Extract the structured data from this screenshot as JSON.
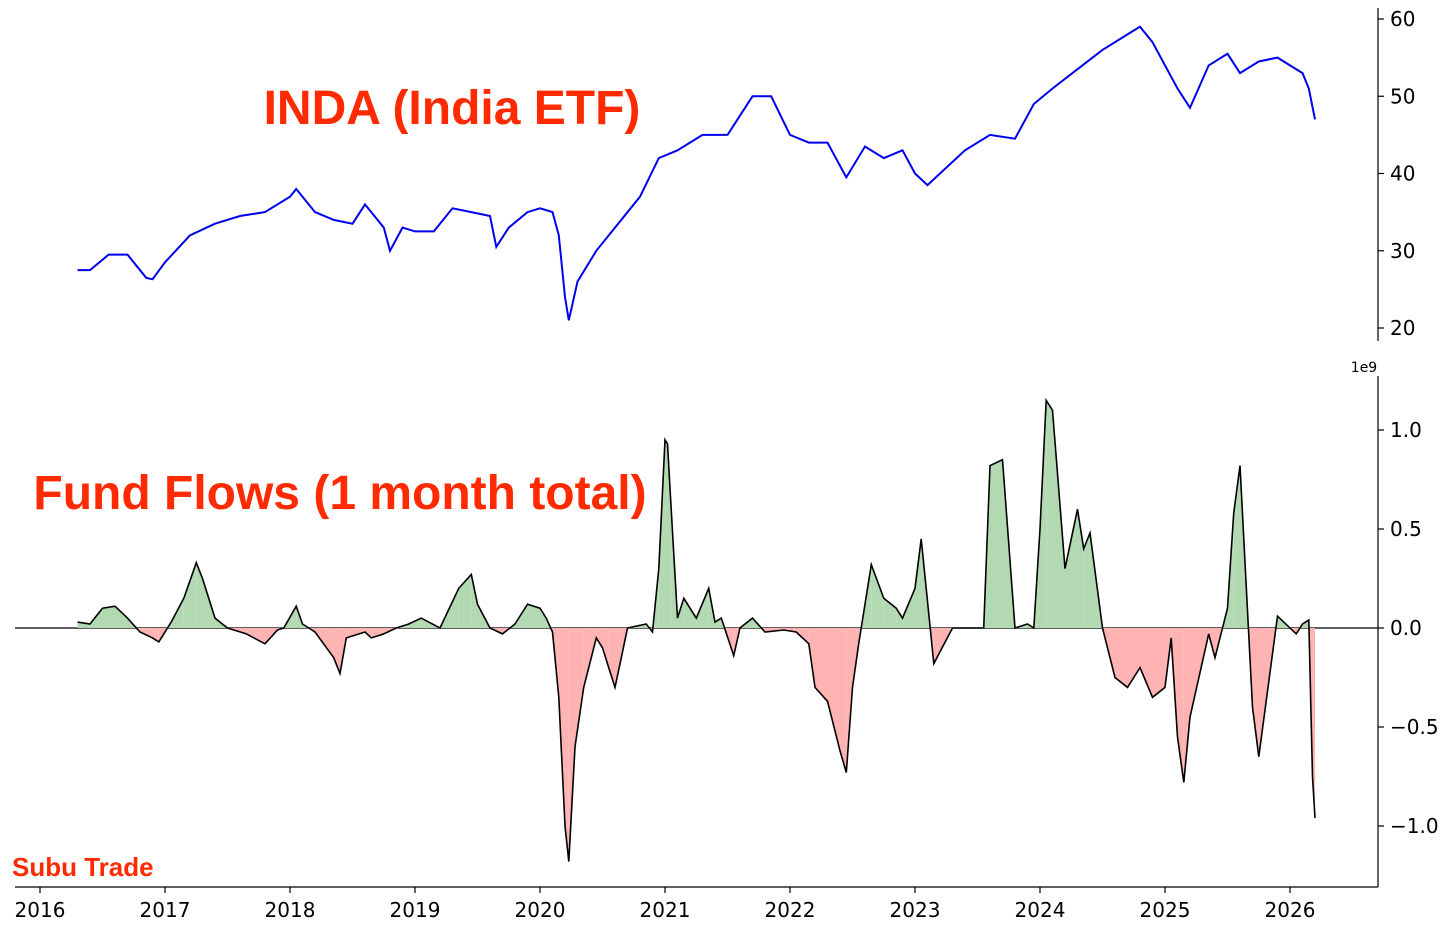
{
  "watermark": "Subu Trade",
  "colors": {
    "title": "#ff2a00",
    "price_line": "#0000ee",
    "inflow_fill": "#b3d9b3",
    "outflow_fill": "#ffb3b3",
    "flow_line": "#000000"
  },
  "chart_data": [
    {
      "type": "line",
      "title": "INDA (India ETF)",
      "xlabel": "",
      "ylabel": "",
      "x_ticks": [
        "2016",
        "2017",
        "2018",
        "2019",
        "2020",
        "2021",
        "2022",
        "2023",
        "2024",
        "2025",
        "2026"
      ],
      "y_ticks": [
        "20",
        "30",
        "40",
        "50",
        "60"
      ],
      "ylim": [
        20,
        60
      ],
      "xlim": [
        2016.0,
        2026.75
      ],
      "y_axis_side": "right",
      "grid": false,
      "series": [
        {
          "x": [
            2016.3,
            2016.4,
            2016.55,
            2016.7,
            2016.85,
            2016.9,
            2017.0,
            2017.2,
            2017.4,
            2017.6,
            2017.8,
            2018.0,
            2018.05,
            2018.2,
            2018.35,
            2018.5,
            2018.6,
            2018.75,
            2018.8,
            2018.9,
            2019.0,
            2019.15,
            2019.3,
            2019.45,
            2019.6,
            2019.65,
            2019.75,
            2019.9,
            2020.0,
            2020.1,
            2020.15,
            2020.2,
            2020.23,
            2020.3,
            2020.45,
            2020.6,
            2020.8,
            2020.95,
            2021.1,
            2021.3,
            2021.5,
            2021.7,
            2021.85,
            2022.0,
            2022.15,
            2022.3,
            2022.45,
            2022.6,
            2022.75,
            2022.9,
            2023.0,
            2023.1,
            2023.2,
            2023.4,
            2023.6,
            2023.8,
            2023.95,
            2024.1,
            2024.3,
            2024.5,
            2024.7,
            2024.8,
            2024.9,
            2025.0,
            2025.1,
            2025.2,
            2025.35,
            2025.5,
            2025.6,
            2025.75,
            2025.9,
            2026.0,
            2026.1,
            2026.15,
            2026.2
          ],
          "y": [
            27.5,
            27.5,
            29.5,
            29.5,
            26.5,
            26.3,
            28.5,
            32.0,
            33.5,
            34.5,
            35.0,
            37.0,
            38.0,
            35.0,
            34.0,
            33.5,
            36.0,
            33.0,
            30.0,
            33.0,
            32.5,
            32.5,
            35.5,
            35.0,
            34.5,
            30.5,
            33.0,
            35.0,
            35.5,
            35.0,
            32.0,
            24.0,
            21.0,
            26.0,
            30.0,
            33.0,
            37.0,
            42.0,
            43.0,
            45.0,
            45.0,
            50.0,
            50.0,
            45.0,
            44.0,
            44.0,
            39.5,
            43.5,
            42.0,
            43.0,
            40.0,
            38.5,
            40.0,
            43.0,
            45.0,
            44.5,
            49.0,
            51.0,
            53.5,
            56.0,
            58.0,
            59.0,
            57.0,
            54.0,
            51.0,
            48.5,
            54.0,
            55.5,
            53.0,
            54.5,
            55.0,
            54.0,
            53.0,
            51.0,
            47.0
          ]
        }
      ]
    },
    {
      "type": "area",
      "title": "Fund Flows (1 month total)",
      "xlabel": "",
      "ylabel": "",
      "y_multiplier": "1e9",
      "x_ticks": [
        "2016",
        "2017",
        "2018",
        "2019",
        "2020",
        "2021",
        "2022",
        "2023",
        "2024",
        "2025",
        "2026"
      ],
      "y_ticks": [
        "−1.0",
        "−0.5",
        "0.0",
        "0.5",
        "1.0"
      ],
      "ylim": [
        -1.3,
        1.27
      ],
      "xlim": [
        2016.0,
        2026.75
      ],
      "y_axis_side": "right",
      "grid": false,
      "series": [
        {
          "x": [
            2016.3,
            2016.4,
            2016.5,
            2016.6,
            2016.7,
            2016.8,
            2016.9,
            2016.95,
            2017.05,
            2017.15,
            2017.25,
            2017.3,
            2017.4,
            2017.5,
            2017.65,
            2017.8,
            2017.9,
            2017.95,
            2018.05,
            2018.1,
            2018.15,
            2018.2,
            2018.35,
            2018.4,
            2018.45,
            2018.6,
            2018.65,
            2018.75,
            2018.85,
            2018.95,
            2019.05,
            2019.2,
            2019.35,
            2019.45,
            2019.5,
            2019.6,
            2019.7,
            2019.8,
            2019.9,
            2020.0,
            2020.05,
            2020.1,
            2020.15,
            2020.2,
            2020.23,
            2020.28,
            2020.35,
            2020.45,
            2020.5,
            2020.55,
            2020.6,
            2020.65,
            2020.7,
            2020.85,
            2020.9,
            2020.95,
            2021.0,
            2021.02,
            2021.05,
            2021.1,
            2021.15,
            2021.25,
            2021.35,
            2021.4,
            2021.45,
            2021.55,
            2021.6,
            2021.7,
            2021.8,
            2021.95,
            2022.05,
            2022.15,
            2022.2,
            2022.3,
            2022.4,
            2022.45,
            2022.5,
            2022.55,
            2022.65,
            2022.75,
            2022.85,
            2022.9,
            2023.0,
            2023.05,
            2023.15,
            2023.3,
            2023.45,
            2023.55,
            2023.6,
            2023.7,
            2023.8,
            2023.9,
            2023.95,
            2024.0,
            2024.05,
            2024.1,
            2024.2,
            2024.3,
            2024.35,
            2024.4,
            2024.5,
            2024.6,
            2024.7,
            2024.8,
            2024.9,
            2025.0,
            2025.05,
            2025.1,
            2025.15,
            2025.2,
            2025.35,
            2025.4,
            2025.5,
            2025.55,
            2025.6,
            2025.7,
            2025.75,
            2025.9,
            2026.05,
            2026.1,
            2026.15,
            2026.18,
            2026.2
          ],
          "y": [
            0.03,
            0.02,
            0.1,
            0.11,
            0.05,
            -0.02,
            -0.05,
            -0.07,
            0.03,
            0.15,
            0.33,
            0.25,
            0.05,
            0.0,
            -0.03,
            -0.08,
            -0.01,
            0.0,
            0.11,
            0.02,
            0.0,
            -0.02,
            -0.15,
            -0.23,
            -0.05,
            -0.02,
            -0.05,
            -0.03,
            0.0,
            0.02,
            0.05,
            0.0,
            0.2,
            0.27,
            0.12,
            0.0,
            -0.03,
            0.02,
            0.12,
            0.1,
            0.05,
            -0.02,
            -0.35,
            -1.0,
            -1.18,
            -0.6,
            -0.3,
            -0.05,
            -0.1,
            -0.2,
            -0.3,
            -0.15,
            0.0,
            0.02,
            -0.02,
            0.3,
            0.95,
            0.93,
            0.6,
            0.05,
            0.15,
            0.05,
            0.2,
            0.03,
            0.05,
            -0.14,
            0.0,
            0.05,
            -0.02,
            -0.01,
            -0.02,
            -0.08,
            -0.3,
            -0.37,
            -0.62,
            -0.73,
            -0.3,
            -0.08,
            0.32,
            0.15,
            0.1,
            0.05,
            0.2,
            0.45,
            -0.18,
            0.0,
            0.0,
            0.0,
            0.82,
            0.85,
            0.0,
            0.02,
            0.0,
            0.5,
            1.15,
            1.1,
            0.3,
            0.6,
            0.4,
            0.48,
            0.0,
            -0.25,
            -0.3,
            -0.2,
            -0.35,
            -0.3,
            -0.05,
            -0.55,
            -0.78,
            -0.45,
            -0.03,
            -0.15,
            0.1,
            0.58,
            0.82,
            -0.4,
            -0.65,
            0.06,
            -0.03,
            0.02,
            0.04,
            -0.75,
            -0.96
          ]
        }
      ]
    }
  ]
}
